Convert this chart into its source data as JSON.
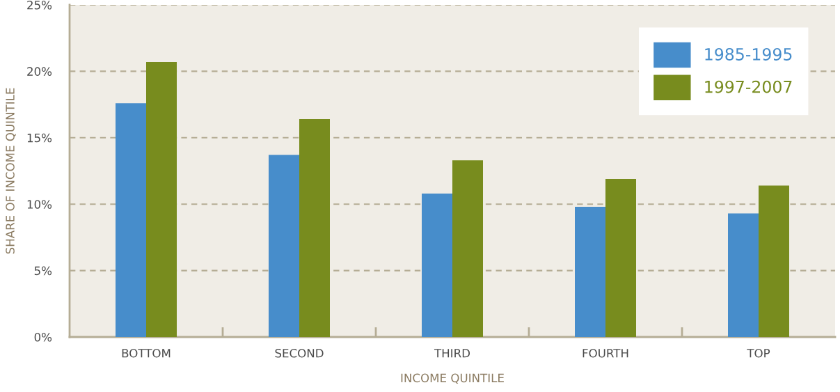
{
  "chart_data": {
    "type": "bar",
    "xlabel": "INCOME QUINTILE",
    "ylabel": "SHARE OF INCOME QUINTILE",
    "categories": [
      "BOTTOM",
      "SECOND",
      "THIRD",
      "FOURTH",
      "TOP"
    ],
    "series": [
      {
        "name": "1985-1995",
        "color": "#478dcb",
        "values": [
          17.6,
          13.7,
          10.8,
          9.8,
          9.3
        ]
      },
      {
        "name": "1997-2007",
        "color": "#788c1e",
        "values": [
          20.7,
          16.4,
          13.3,
          11.9,
          11.4
        ]
      }
    ],
    "ylim": [
      0,
      25
    ],
    "yticks": [
      {
        "value": 0,
        "label": "0%"
      },
      {
        "value": 5,
        "label": "5%"
      },
      {
        "value": 10,
        "label": "10%"
      },
      {
        "value": 15,
        "label": "15%"
      },
      {
        "value": 20,
        "label": "20%"
      },
      {
        "value": 25,
        "label": "25%"
      }
    ],
    "grid": "y",
    "legend": "top right"
  }
}
